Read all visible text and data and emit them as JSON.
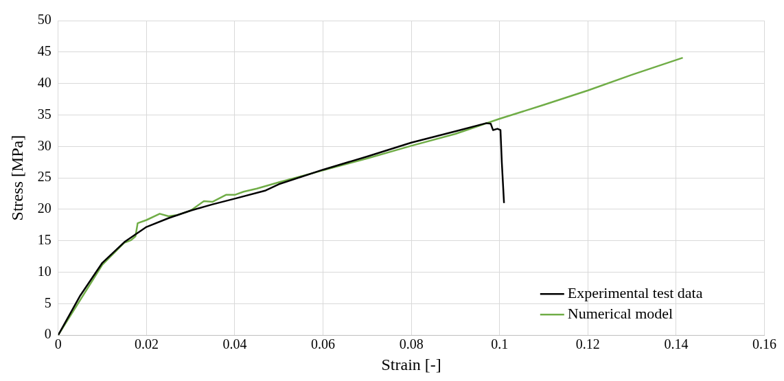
{
  "chart_data": {
    "type": "line",
    "xlabel": "Strain [-]",
    "ylabel": "Stress [MPa]",
    "xlim": [
      0,
      0.16
    ],
    "xticks": [
      0,
      0.02,
      0.04,
      0.06,
      0.08,
      0.1,
      0.12,
      0.14,
      0.16
    ],
    "ylim": [
      0,
      50
    ],
    "yticks": [
      0,
      5,
      10,
      15,
      20,
      25,
      30,
      35,
      40,
      45,
      50
    ],
    "grid": true,
    "legend": "bottom right",
    "marker": "none",
    "line_style": "solid",
    "series": [
      {
        "name": "Experimental test data",
        "color": "#000000",
        "x": [
          0,
          0.005,
          0.01,
          0.015,
          0.02,
          0.025,
          0.03,
          0.035,
          0.04,
          0.047,
          0.05,
          0.06,
          0.07,
          0.08,
          0.09,
          0.097,
          0.098,
          0.0985,
          0.0995,
          0.1002,
          0.1005,
          0.101
        ],
        "values": [
          0,
          6.3,
          11.5,
          14.8,
          17.2,
          18.6,
          19.8,
          20.8,
          21.7,
          23.0,
          24.0,
          26.3,
          28.4,
          30.6,
          32.4,
          33.7,
          33.6,
          32.6,
          32.8,
          32.6,
          27.5,
          21
        ]
      },
      {
        "name": "Numerical model",
        "color": "#70ad47",
        "x": [
          0,
          0.01,
          0.015,
          0.0165,
          0.0175,
          0.018,
          0.02,
          0.023,
          0.025,
          0.027,
          0.03,
          0.033,
          0.035,
          0.038,
          0.04,
          0.042,
          0.045,
          0.05,
          0.06,
          0.07,
          0.08,
          0.09,
          0.1,
          0.11,
          0.12,
          0.13,
          0.1415
        ],
        "values": [
          0,
          11.2,
          14.7,
          15.1,
          15.7,
          17.8,
          18.3,
          19.3,
          18.9,
          19.1,
          19.8,
          21.3,
          21.2,
          22.3,
          22.3,
          22.8,
          23.3,
          24.3,
          26.2,
          28.1,
          30.1,
          32.0,
          34.4,
          36.6,
          38.9,
          41.4,
          44.1
        ]
      }
    ]
  }
}
